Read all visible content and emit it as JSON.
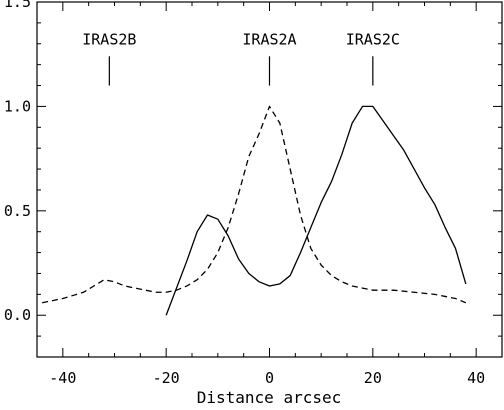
{
  "chart_data": {
    "type": "line",
    "title": "",
    "xlabel": "Distance arcsec",
    "ylabel": "",
    "xlim": [
      -45,
      45
    ],
    "ylim": [
      -0.2,
      1.5
    ],
    "x_ticks": [
      "-40",
      "-20",
      "0",
      "20",
      "40"
    ],
    "y_ticks": [
      "0.0",
      "0.5",
      "1.0",
      "1.5"
    ],
    "grid": false,
    "legend": "none",
    "line_color": "#000000",
    "series": [
      {
        "style": "solid",
        "x": [
          -20,
          -16,
          -14,
          -12,
          -10,
          -8,
          -6,
          -4,
          -2,
          0,
          2,
          4,
          6,
          8,
          10,
          12,
          14,
          16,
          18,
          20,
          22,
          24,
          26,
          28,
          30,
          32,
          34,
          36,
          38
        ],
        "y": [
          0.0,
          0.26,
          0.4,
          0.48,
          0.46,
          0.38,
          0.27,
          0.2,
          0.16,
          0.14,
          0.15,
          0.19,
          0.3,
          0.42,
          0.54,
          0.64,
          0.77,
          0.92,
          1.0,
          1.0,
          0.93,
          0.86,
          0.79,
          0.7,
          0.61,
          0.53,
          0.42,
          0.32,
          0.15
        ]
      },
      {
        "style": "dashed",
        "x": [
          -44,
          -40,
          -36,
          -34,
          -32,
          -30,
          -28,
          -26,
          -24,
          -22,
          -20,
          -18,
          -16,
          -14,
          -12,
          -10,
          -8,
          -6,
          -4,
          -2,
          0,
          2,
          4,
          6,
          8,
          10,
          12,
          14,
          16,
          18,
          20,
          24,
          28,
          32,
          34,
          36,
          38
        ],
        "y": [
          0.06,
          0.08,
          0.11,
          0.14,
          0.17,
          0.16,
          0.14,
          0.13,
          0.12,
          0.11,
          0.11,
          0.12,
          0.14,
          0.17,
          0.22,
          0.3,
          0.42,
          0.58,
          0.76,
          0.87,
          1.0,
          0.92,
          0.7,
          0.48,
          0.32,
          0.24,
          0.19,
          0.16,
          0.14,
          0.13,
          0.12,
          0.12,
          0.11,
          0.1,
          0.09,
          0.08,
          0.06
        ]
      }
    ],
    "annotations": [
      {
        "label": "IRAS2B",
        "x": -31,
        "y_top": 1.24,
        "y_bottom": 1.1
      },
      {
        "label": "IRAS2A",
        "x": 0,
        "y_top": 1.24,
        "y_bottom": 1.1
      },
      {
        "label": "IRAS2C",
        "x": 20,
        "y_top": 1.24,
        "y_bottom": 1.1
      }
    ]
  }
}
